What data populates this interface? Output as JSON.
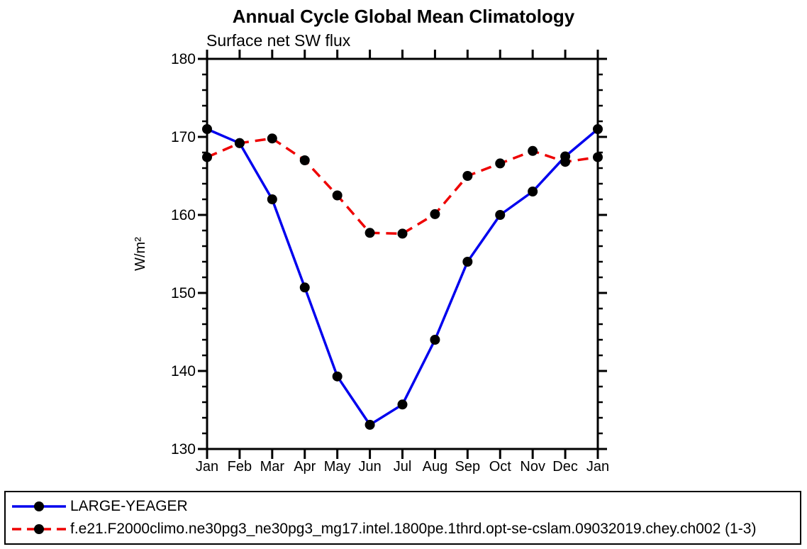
{
  "chart_data": {
    "type": "line",
    "title": "Annual Cycle Global Mean Climatology",
    "subtitle": "Surface net SW flux",
    "ylabel": "W/m²",
    "xlabel": "",
    "ylim": [
      130,
      180
    ],
    "ytick_major_step": 10,
    "ytick_minor_step": 2,
    "grid": "off",
    "legend_position": "bottom-box",
    "categories": [
      "Jan",
      "Feb",
      "Mar",
      "Apr",
      "May",
      "Jun",
      "Jul",
      "Aug",
      "Sep",
      "Oct",
      "Nov",
      "Dec",
      "Jan"
    ],
    "series": [
      {
        "name": "LARGE-YEAGER",
        "color": "#0000ee",
        "line_style": "solid",
        "marker": "filled-circle",
        "marker_color": "#000000",
        "values": [
          171.0,
          169.2,
          162.0,
          150.7,
          139.3,
          133.1,
          135.7,
          144.0,
          154.0,
          160.0,
          163.0,
          167.5,
          171.0
        ]
      },
      {
        "name": "f.e21.F2000climo.ne30pg3_ne30pg3_mg17.intel.1800pe.1thrd.opt-se-cslam.09032019.chey.ch002 (1-3)",
        "color": "#ee0000",
        "line_style": "dashed",
        "marker": "filled-circle",
        "marker_color": "#000000",
        "values": [
          167.4,
          169.2,
          169.8,
          167.0,
          162.5,
          157.7,
          157.6,
          160.1,
          165.0,
          166.6,
          168.2,
          166.8,
          167.4
        ]
      }
    ],
    "axis_color": "#000000",
    "tick_label_color": "#000000"
  }
}
